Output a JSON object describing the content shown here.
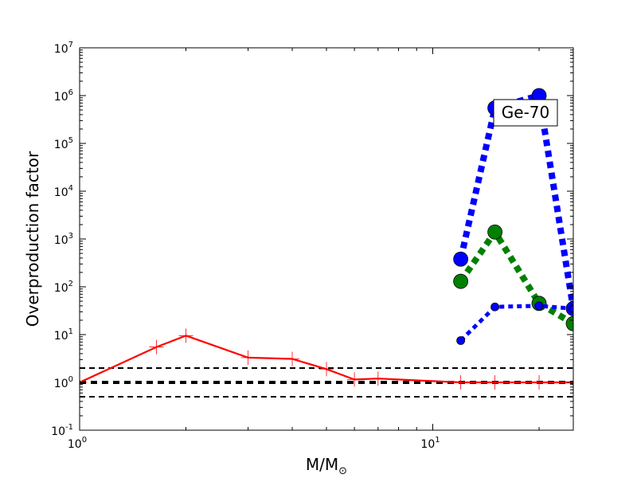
{
  "chart_data": {
    "type": "line",
    "title": "",
    "xlabel": "M/M",
    "xlabel_sub": "⊙",
    "ylabel": "Overproduction factor",
    "xscale": "log",
    "yscale": "log",
    "xlim": [
      1,
      25
    ],
    "ylim": [
      0.1,
      10000000
    ],
    "grid": false,
    "x_ticks": [
      {
        "value": 1,
        "base": "10",
        "exp": "0"
      },
      {
        "value": 10,
        "base": "10",
        "exp": "1"
      }
    ],
    "y_ticks": [
      {
        "value": 0.1,
        "base": "10",
        "exp": "-1"
      },
      {
        "value": 1,
        "base": "10",
        "exp": "0"
      },
      {
        "value": 10,
        "base": "10",
        "exp": "1"
      },
      {
        "value": 100,
        "base": "10",
        "exp": "2"
      },
      {
        "value": 1000,
        "base": "10",
        "exp": "3"
      },
      {
        "value": 10000,
        "base": "10",
        "exp": "4"
      },
      {
        "value": 100000,
        "base": "10",
        "exp": "5"
      },
      {
        "value": 1000000,
        "base": "10",
        "exp": "6"
      },
      {
        "value": 10000000,
        "base": "10",
        "exp": "7"
      }
    ],
    "annotation": "Ge-70",
    "reference_lines": [
      {
        "y": 2,
        "color": "#000000",
        "style": "dashed",
        "weight": "thin"
      },
      {
        "y": 1,
        "color": "#000000",
        "style": "dashed",
        "weight": "thick"
      },
      {
        "y": 0.5,
        "color": "#000000",
        "style": "dashed",
        "weight": "thin"
      }
    ],
    "series": [
      {
        "color": "#ff0000",
        "line": "solid",
        "marker": "plus",
        "x": [
          1,
          1.65,
          2,
          3,
          4,
          5,
          6,
          7,
          12,
          15,
          20,
          25
        ],
        "y": [
          1.0,
          5.5,
          9.5,
          3.3,
          3.1,
          1.9,
          1.15,
          1.2,
          1.0,
          1.0,
          1.0,
          1.0
        ]
      },
      {
        "color": "#0000ff",
        "line": "dotted",
        "marker": "circle",
        "size": "large",
        "x": [
          12,
          15,
          20,
          25
        ],
        "y": [
          380,
          550000,
          1000000,
          35
        ]
      },
      {
        "color": "#008000",
        "line": "dotted",
        "marker": "circle",
        "size": "large",
        "x": [
          12,
          15,
          20,
          25
        ],
        "y": [
          130,
          1400,
          45,
          17
        ]
      },
      {
        "color": "#0000ff",
        "line": "dotted",
        "marker": "circle",
        "size": "small",
        "x": [
          12,
          15,
          20,
          25
        ],
        "y": [
          7.5,
          38,
          40,
          35
        ]
      }
    ]
  }
}
